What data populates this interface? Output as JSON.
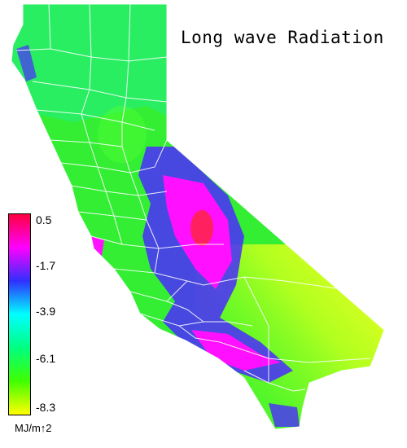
{
  "title": "Long wave Radiation",
  "legend": {
    "ticks": [
      "0.5",
      "-1.7",
      "-3.9",
      "-6.1",
      "-8.3"
    ],
    "unit": "MJ/m↑2",
    "colors": [
      "#ff0040",
      "#ff00ff",
      "#3030ff",
      "#00ffff",
      "#00ff80",
      "#40ff00",
      "#ffff00"
    ]
  },
  "map": {
    "region": "California",
    "base_color": "#33ee33",
    "north_color": "#22ee88",
    "high_color": "#ff10ff",
    "mid_color": "#4a2aff",
    "low_color": "#ddff22",
    "county_line_color": "#ffffff"
  }
}
